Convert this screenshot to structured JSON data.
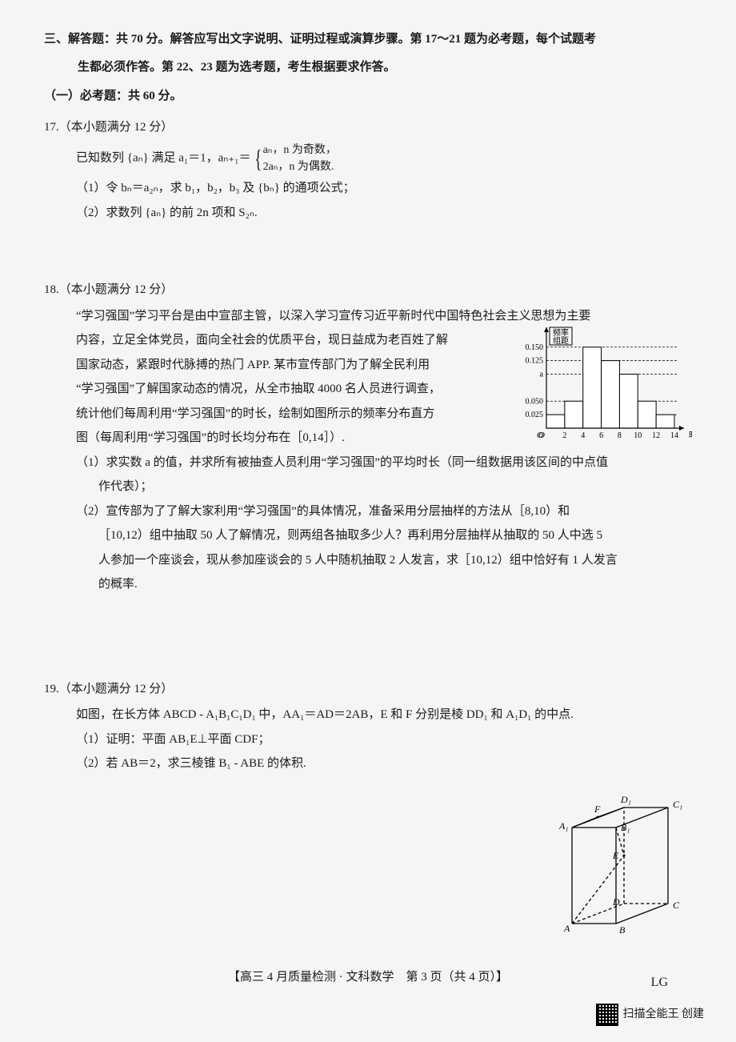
{
  "section": {
    "title": "三、解答题：共 70 分。解答应写出文字说明、证明过程或演算步骤。第 17～21 题为必考题，每个试题考",
    "title_line2": "生都必须作答。第 22、23 题为选考题，考生根据要求作答。",
    "required": "（一）必考题：共 60 分。"
  },
  "q17": {
    "label": "17.（本小题满分 12 分）",
    "stem_prefix": "已知数列 {aₙ} 满足 a₁＝1，aₙ₊₁＝",
    "case1": "aₙ，n 为奇数，",
    "case2": "2aₙ，n 为偶数.",
    "part1": "（1）令 bₙ＝a₂ₙ，求 b₁，b₂，b₃ 及 {bₙ} 的通项公式；",
    "part2": "（2）求数列 {aₙ} 的前 2n 项和 S₂ₙ."
  },
  "q18": {
    "label": "18.（本小题满分 12 分）",
    "p1": "“学习强国”学习平台是由中宣部主管，以深入学习宣传习近平新时代中国特色社会主义思想为主要",
    "p2": "内容，立足全体党员，面向全社会的优质平台，现日益成为老百姓了解",
    "p3": "国家动态，紧跟时代脉搏的热门 APP. 某市宣传部门为了解全民利用",
    "p4": "“学习强国”了解国家动态的情况，从全市抽取 4000 名人员进行调查，",
    "p5": "统计他们每周利用“学习强国”的时长，绘制如图所示的频率分布直方",
    "p6": "图（每周利用“学习强国”的时长均分布在［0,14］）.",
    "part1": "（1）求实数 a 的值，并求所有被抽查人员利用“学习强国”的平均时长（同一组数据用该区间的中点值",
    "part1b": "作代表）；",
    "part2": "（2）宣传部为了了解大家利用“学习强国”的具体情况，准备采用分层抽样的方法从［8,10）和",
    "part2b": "［10,12）组中抽取 50 人了解情况，则两组各抽取多少人？再利用分层抽样从抽取的 50 人中选 5",
    "part2c": "人参加一个座谈会，现从参加座谈会的 5 人中随机抽取 2 人发言，求［10,12）组中恰好有 1 人发言",
    "part2d": "的概率.",
    "histogram": {
      "ylabel": "频率/组距",
      "xlabel": "时间",
      "xticks": [
        "O",
        "2",
        "4",
        "6",
        "8",
        "10",
        "12",
        "14"
      ],
      "yticks": [
        "0.150",
        "0.125",
        "a",
        "0.050",
        "0.025"
      ],
      "y_tick_positions": [
        0.15,
        0.125,
        0.1,
        0.05,
        0.025
      ],
      "bars": [
        0.025,
        0.05,
        0.15,
        0.125,
        0.1,
        0.05,
        0.025
      ],
      "ymax": 0.16,
      "bar_fill": "#ffffff",
      "bar_stroke": "#000000",
      "axis_color": "#000000",
      "grid_dash": "3,2"
    }
  },
  "q19": {
    "label": "19.（本小题满分 12 分）",
    "stem": "如图，在长方体 ABCD - A₁B₁C₁D₁ 中，AA₁＝AD＝2AB，E 和 F 分别是棱 DD₁ 和 A₁D₁ 的中点.",
    "part1": "（1）证明：平面 AB₁E⊥平面 CDF；",
    "part2": "（2）若 AB＝2，求三棱锥 B₁ - ABE 的体积.",
    "cuboid": {
      "labels": [
        "A",
        "B",
        "C",
        "D",
        "A₁",
        "B₁",
        "C₁",
        "D₁",
        "E",
        "F"
      ],
      "stroke": "#000000",
      "dash": "4,3"
    }
  },
  "footer": {
    "text": "【高三 4 月质量检测 · 文科数学　第 3 页（共 4 页）】",
    "right": "LG",
    "scan": "扫描全能王 创建"
  },
  "colors": {
    "page_bg": "#f5f5f3",
    "text": "#1a1a1a"
  }
}
